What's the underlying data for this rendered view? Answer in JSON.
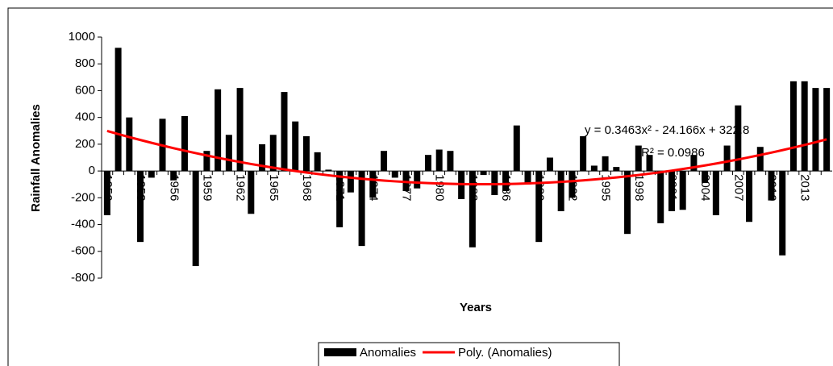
{
  "chart_data": {
    "type": "bar",
    "x_label": "Years",
    "y_label": "Rainfall Anomalies",
    "annotations": [
      "y = 0.3463x² - 24.166x + 322.8",
      "R² = 0.0986"
    ],
    "categories": [
      "1950",
      null,
      null,
      "1953",
      null,
      null,
      "1956",
      null,
      null,
      "1959",
      null,
      null,
      "1962",
      null,
      null,
      "1965",
      null,
      null,
      "1968",
      null,
      null,
      "1971",
      null,
      null,
      "1974",
      null,
      null,
      "1977",
      null,
      null,
      "1980",
      null,
      null,
      "1983",
      null,
      null,
      "1986",
      null,
      null,
      "1989",
      null,
      null,
      "1992",
      null,
      null,
      "1995",
      null,
      null,
      "1998",
      null,
      null,
      "2001",
      null,
      null,
      "2004",
      null,
      null,
      "2007",
      null,
      null,
      "2010",
      null,
      null,
      "2013",
      null,
      null
    ],
    "series": [
      {
        "name": "Anomalies",
        "color": "#000000",
        "values": [
          -330,
          920,
          400,
          -530,
          -50,
          390,
          -70,
          410,
          -710,
          150,
          610,
          270,
          620,
          -320,
          200,
          270,
          590,
          370,
          260,
          140,
          10,
          -420,
          -160,
          -560,
          -200,
          150,
          -50,
          -150,
          -130,
          120,
          160,
          150,
          -210,
          -570,
          -30,
          -180,
          -150,
          340,
          -100,
          -530,
          100,
          -300,
          -200,
          260,
          40,
          110,
          30,
          -470,
          190,
          120,
          -390,
          -300,
          -290,
          120,
          -90,
          -330,
          190,
          490,
          -380,
          180,
          -220,
          -630,
          670,
          670,
          620,
          620
        ]
      },
      {
        "name": "Poly. (Anomalies)",
        "color": "#ff0000",
        "type": "line",
        "values": [
          299.0,
          275.9,
          253.4,
          231.7,
          210.6,
          190.3,
          170.6,
          151.6,
          133.4,
          115.8,
          98.9,
          82.7,
          67.2,
          52.3,
          38.2,
          24.8,
          12.1,
          0.0,
          -11.3,
          -22.0,
          -32.0,
          -41.2,
          -49.8,
          -57.7,
          -64.9,
          -71.4,
          -77.2,
          -82.4,
          -86.8,
          -90.5,
          -93.6,
          -95.9,
          -97.6,
          -98.5,
          -98.8,
          -98.4,
          -97.3,
          -95.4,
          -92.9,
          -89.8,
          -85.9,
          -81.3,
          -76.0,
          -70.1,
          -63.4,
          -56.1,
          -48.0,
          -39.3,
          -29.9,
          -19.7,
          -8.9,
          2.6,
          14.8,
          27.7,
          41.2,
          55.5,
          70.5,
          86.2,
          102.5,
          119.5,
          137.3,
          155.7,
          174.8,
          194.5,
          215.0,
          236.3
        ]
      }
    ],
    "ylim": [
      -800,
      1000
    ],
    "yticks": [
      -800,
      -600,
      -400,
      -200,
      0,
      200,
      400,
      600,
      800,
      1000
    ],
    "grid": false,
    "legend": "bottom"
  }
}
